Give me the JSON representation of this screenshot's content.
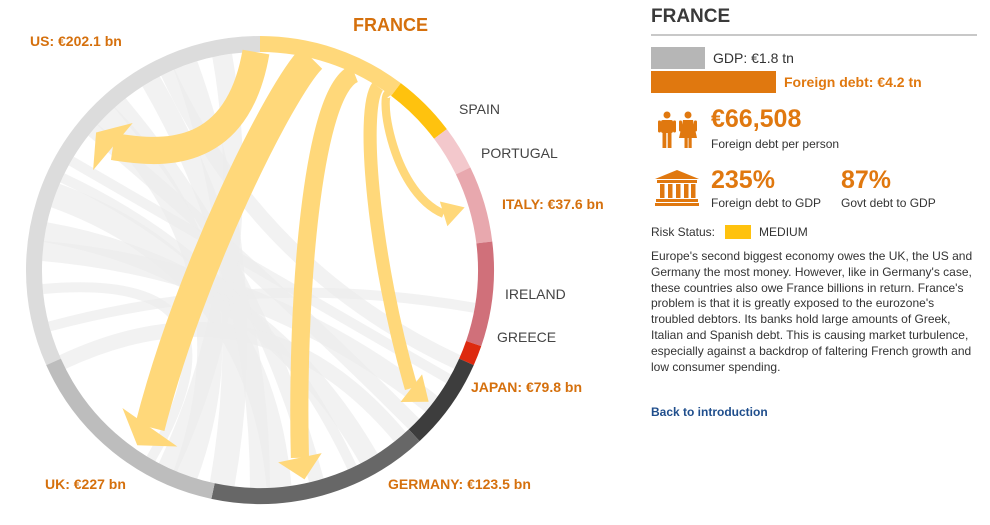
{
  "diagram": {
    "source_label": "FRANCE",
    "nodes": [
      {
        "id": "us",
        "label": "US: €202.1 bn",
        "color": "#dcdcdc",
        "label_color": "#d5700d",
        "bold": true
      },
      {
        "id": "france",
        "label": "",
        "color": "#ffd87a"
      },
      {
        "id": "spain",
        "label": "SPAIN",
        "color": "#ffc20e",
        "label_color": "#444444",
        "bold": false
      },
      {
        "id": "portugal",
        "label": "PORTUGAL",
        "color": "#f3c8cc",
        "label_color": "#444444",
        "bold": false
      },
      {
        "id": "italy",
        "label": "ITALY: €37.6 bn",
        "color": "#e8a8ae",
        "label_color": "#d5700d",
        "bold": true
      },
      {
        "id": "ireland",
        "label": "IRELAND",
        "color": "#d0707a",
        "label_color": "#444444",
        "bold": false
      },
      {
        "id": "greece",
        "label": "GREECE",
        "color": "#dd2a0f",
        "label_color": "#444444",
        "bold": false
      },
      {
        "id": "japan",
        "label": "JAPAN: €79.8 bn",
        "color": "#3d3d3d",
        "label_color": "#d5700d",
        "bold": true
      },
      {
        "id": "germany",
        "label": "GERMANY: €123.5 bn",
        "color": "#676767",
        "label_color": "#d5700d",
        "bold": true
      },
      {
        "id": "uk",
        "label": "UK: €227 bn",
        "color": "#bdbdbd",
        "label_color": "#d5700d",
        "bold": true
      }
    ],
    "flows": [
      {
        "from": "france",
        "to": "us",
        "value_bn": 202.1
      },
      {
        "from": "france",
        "to": "uk",
        "value_bn": 227
      },
      {
        "from": "france",
        "to": "germany",
        "value_bn": 123.5
      },
      {
        "from": "france",
        "to": "japan",
        "value_bn": 79.8
      },
      {
        "from": "france",
        "to": "italy",
        "value_bn": 37.6
      }
    ]
  },
  "panel": {
    "title": "FRANCE",
    "gdp_label": "GDP: €1.8 tn",
    "foreign_debt_label": "Foreign debt: €4.2 tn",
    "gdp_tn": 1.8,
    "foreign_debt_tn": 4.2,
    "debt_per_person": "€66,508",
    "debt_per_person_caption": "Foreign debt per person",
    "foreign_debt_pct": "235%",
    "foreign_debt_pct_caption": "Foreign debt to GDP",
    "govt_debt_pct": "87%",
    "govt_debt_pct_caption": "Govt debt to GDP",
    "risk_label": "Risk Status:",
    "risk_value": "MEDIUM",
    "risk_color": "#ffc20e",
    "description": "Europe's second biggest economy owes the UK, the US and Germany the most money. However, like in Germany's case, these countries also owe France billions in return. France's problem is that it is greatly exposed to the eurozone's troubled debtors. Its banks hold large amounts of Greek, Italian and Spanish debt. This is causing market turbulence, especially against a backdrop of faltering French growth and low consumer spending.",
    "back_link": "Back to introduction",
    "accent_color": "#e0780f",
    "icons": [
      "people-icon",
      "bank-icon"
    ]
  }
}
